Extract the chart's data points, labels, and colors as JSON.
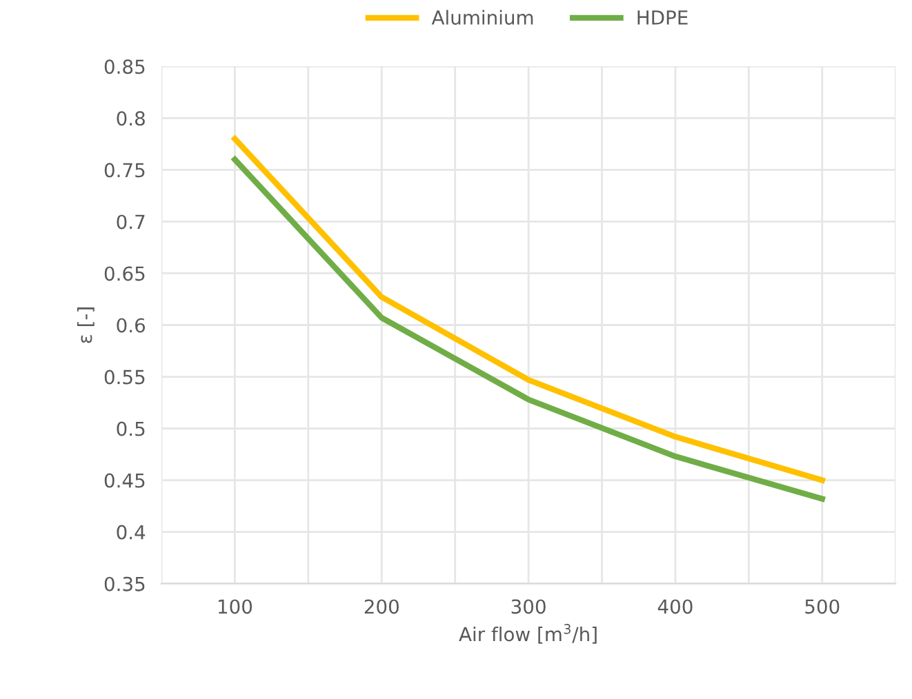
{
  "chart_data": {
    "type": "line",
    "xlabel": "Air flow [m$^{3}$/h]",
    "ylabel": "ε [-]",
    "categories": [
      "100",
      "200",
      "300",
      "400",
      "500"
    ],
    "series": [
      {
        "name": "Aluminium",
        "color": "#ffc000",
        "values": [
          0.78,
          0.627,
          0.547,
          0.492,
          0.45
        ]
      },
      {
        "name": "HDPE",
        "color": "#70ad47",
        "values": [
          0.76,
          0.607,
          0.528,
          0.473,
          0.432
        ]
      }
    ],
    "ylim": [
      0.35,
      0.85
    ],
    "yticks": [
      0.35,
      0.4,
      0.45,
      0.5,
      0.55,
      0.6,
      0.65,
      0.7,
      0.75,
      0.8,
      0.85
    ],
    "grid": true,
    "legend": "top",
    "marker": "none",
    "line_style": "solid"
  }
}
